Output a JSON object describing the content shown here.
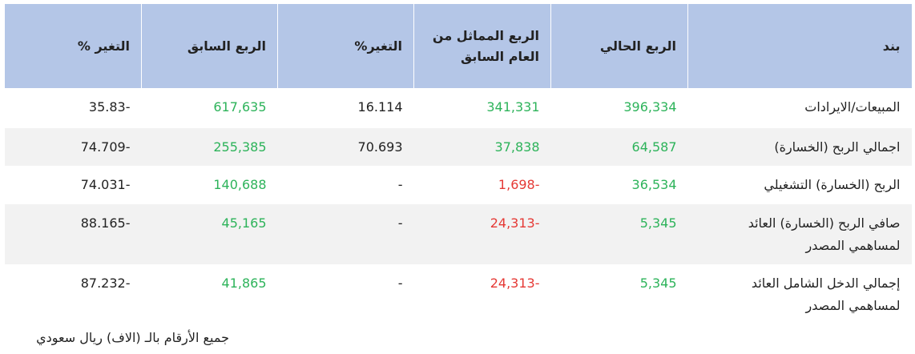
{
  "table": {
    "headers": [
      "بند",
      "الربع الحالي",
      "الربع المماثل من العام السابق",
      "التغير%",
      "الربع السابق",
      "التغير %"
    ],
    "rows": [
      {
        "cells": [
          "المبيعات/الايرادات",
          "396,334",
          "341,331",
          "16.114",
          "617,635",
          "35.83-"
        ],
        "colors": [
          "#222222",
          "#2db35a",
          "#2db35a",
          "#222222",
          "#2db35a",
          "#222222"
        ]
      },
      {
        "cells": [
          "اجمالي الربح (الخسارة)",
          "64,587",
          "37,838",
          "70.693",
          "255,385",
          "74.709-"
        ],
        "colors": [
          "#222222",
          "#2db35a",
          "#2db35a",
          "#222222",
          "#2db35a",
          "#222222"
        ]
      },
      {
        "cells": [
          "الربح (الخسارة) التشغيلي",
          "36,534",
          "1,698-",
          "-",
          "140,688",
          "74.031-"
        ],
        "colors": [
          "#222222",
          "#2db35a",
          "#e53935",
          "#222222",
          "#2db35a",
          "#222222"
        ]
      },
      {
        "cells": [
          "صافي الربح (الخسارة) العائد لمساهمي المصدر",
          "5,345",
          "24,313-",
          "-",
          "45,165",
          "88.165-"
        ],
        "colors": [
          "#222222",
          "#2db35a",
          "#e53935",
          "#222222",
          "#2db35a",
          "#222222"
        ]
      },
      {
        "cells": [
          "إجمالي الدخل الشامل العائد لمساهمي المصدر",
          "5,345",
          "24,313-",
          "-",
          "41,865",
          "87.232-"
        ],
        "colors": [
          "#222222",
          "#2db35a",
          "#e53935",
          "#222222",
          "#2db35a",
          "#222222"
        ]
      }
    ]
  },
  "footer": "جميع الأرقام بالـ (الاف) ريال سعودي"
}
